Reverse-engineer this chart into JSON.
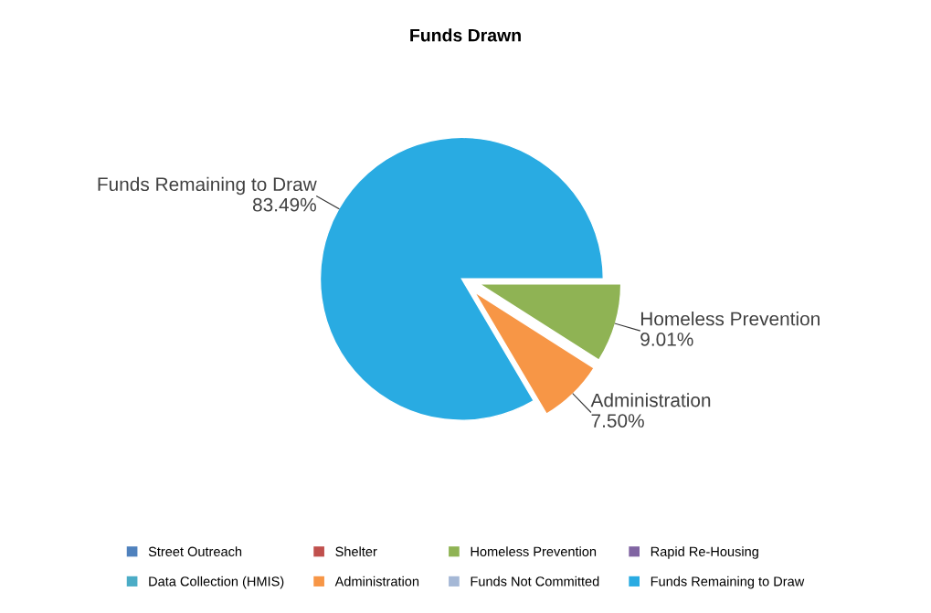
{
  "chart_data": {
    "type": "pie",
    "title": "Funds Drawn",
    "categories": [
      "Street Outreach",
      "Shelter",
      "Homeless Prevention",
      "Rapid Re-Housing",
      "Data Collection (HMIS)",
      "Administration",
      "Funds Not Committed",
      "Funds Remaining to Draw"
    ],
    "values": [
      0,
      0,
      9.01,
      0,
      0,
      7.5,
      0,
      83.49
    ],
    "colors": [
      "#4f81bd",
      "#c0504d",
      "#8fb354",
      "#8064a2",
      "#4bacc6",
      "#f79646",
      "#a5b8d6",
      "#29abe2"
    ],
    "value_labels": [
      null,
      null,
      "9.01%",
      null,
      null,
      "7.50%",
      null,
      "83.49%"
    ],
    "legend": "bottom"
  }
}
